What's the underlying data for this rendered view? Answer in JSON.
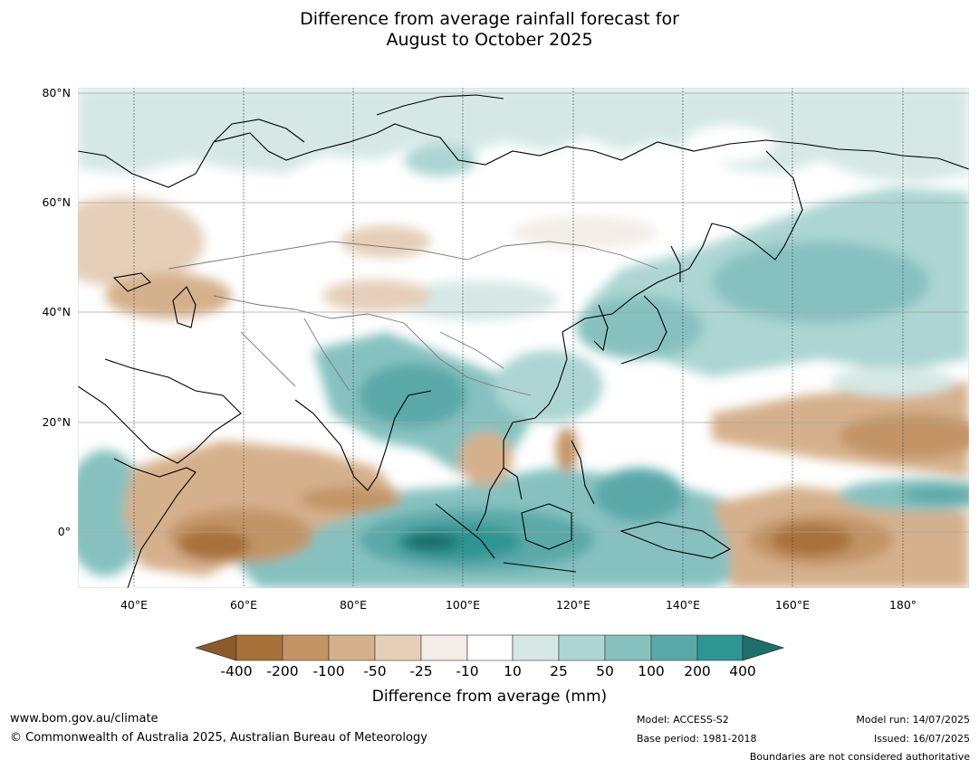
{
  "title": {
    "line1": "Difference from average rainfall forecast for",
    "line2": "August to October 2025"
  },
  "map": {
    "lat_labels": [
      "80°N",
      "60°N",
      "40°N",
      "20°N",
      "0°"
    ],
    "lon_labels": [
      "40°E",
      "60°E",
      "80°E",
      "100°E",
      "120°E",
      "140°E",
      "160°E",
      "180°"
    ],
    "lon_range": [
      30,
      192
    ],
    "lat_range": [
      -10,
      81
    ],
    "region": "Asia, Indian Ocean and Western Pacific"
  },
  "legend": {
    "tick_labels": [
      "-400",
      "-200",
      "-100",
      "-50",
      "-25",
      "-10",
      "10",
      "25",
      "50",
      "100",
      "200",
      "400"
    ],
    "colors": [
      "#8a5a2b",
      "#a9713a",
      "#c29466",
      "#d5b08c",
      "#e5cfb9",
      "#f2ede6",
      "#ffffff",
      "#d5e8e6",
      "#acd5d3",
      "#86c1c0",
      "#5aa9a8",
      "#2f9593",
      "#1e6e6b"
    ],
    "label": "Difference from average (mm)"
  },
  "footer": {
    "url": "www.bom.gov.au/climate",
    "copyright": "© Commonwealth of Australia 2025, Australian Bureau of Meteorology",
    "model": "Model: ACCESS-S2",
    "base_period": "Base period: 1981-2018",
    "model_run": "Model run: 14/07/2025",
    "issued": "Issued: 16/07/2025",
    "disclaimer": "Boundaries are not considered authoritative"
  }
}
